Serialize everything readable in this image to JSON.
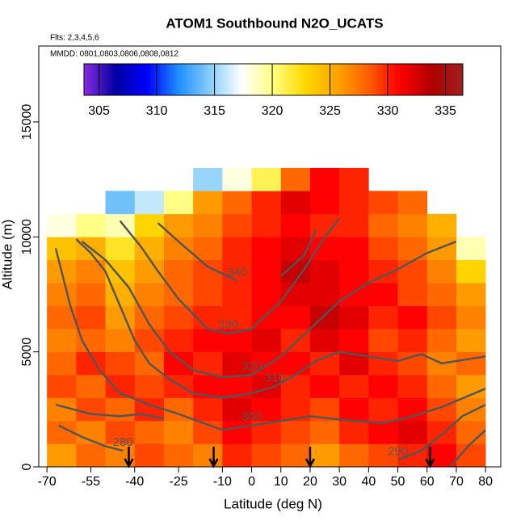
{
  "chart_data": {
    "type": "heatmap",
    "title": "ATOM1 Southbound N2O_UCATS",
    "subtitle": "Flts: 2,3,4,5,6",
    "annotation": "MMDD: 0801,0803,0806,0808,0812",
    "xlabel": "Latitude (deg N)",
    "ylabel": "Altitude (m)",
    "xlim": [
      -72.8,
      85.2
    ],
    "ylim": [
      0,
      18300
    ],
    "xticks": [
      -70,
      -55,
      -40,
      -25,
      -10,
      0,
      10,
      20,
      30,
      40,
      50,
      60,
      70,
      80
    ],
    "yticks": [
      0,
      5000,
      10000,
      15000
    ],
    "x_bins": [
      -70,
      -60,
      -50,
      -40,
      -30,
      -20,
      -10,
      0,
      10,
      20,
      30,
      40,
      50,
      60,
      70,
      80
    ],
    "y_bins": [
      0,
      1000,
      2000,
      3000,
      4000,
      5000,
      6000,
      7000,
      8000,
      9000,
      10000,
      11000,
      12000,
      13000
    ],
    "values": [
      [
        326,
        328,
        327,
        329,
        328,
        327,
        330,
        329,
        328,
        326,
        328,
        329,
        330,
        331,
        329
      ],
      [
        328,
        327,
        329,
        328,
        327,
        329,
        331,
        330,
        329,
        328,
        330,
        331,
        332,
        330,
        328
      ],
      [
        327,
        329,
        328,
        330,
        328,
        330,
        332,
        331,
        330,
        329,
        331,
        330,
        331,
        329,
        327
      ],
      [
        329,
        328,
        330,
        329,
        330,
        331,
        331,
        332,
        330,
        331,
        330,
        331,
        330,
        328,
        326
      ],
      [
        328,
        330,
        329,
        328,
        331,
        330,
        332,
        331,
        331,
        330,
        332,
        330,
        329,
        327,
        328
      ],
      [
        327,
        328,
        327,
        329,
        330,
        331,
        331,
        332,
        330,
        332,
        331,
        329,
        330,
        328,
        326
      ],
      [
        328,
        329,
        326,
        328,
        329,
        330,
        330,
        331,
        331,
        333,
        332,
        330,
        331,
        329,
        327
      ],
      [
        327,
        328,
        325,
        327,
        328,
        329,
        330,
        331,
        332,
        332,
        331,
        331,
        329,
        328,
        326
      ],
      [
        326,
        327,
        324,
        326,
        328,
        329,
        330,
        331,
        333,
        332,
        331,
        330,
        329,
        327,
        323
      ],
      [
        324,
        325,
        322,
        325,
        327,
        328,
        330,
        331,
        332,
        331,
        331,
        329,
        328,
        326,
        319
      ],
      [
        318,
        320,
        319,
        323,
        326,
        327,
        329,
        330,
        331,
        330,
        330,
        328,
        327,
        325,
        null
      ],
      [
        null,
        null,
        314,
        316,
        320,
        326,
        328,
        330,
        332,
        331,
        330,
        329,
        328,
        null,
        null
      ],
      [
        null,
        null,
        null,
        null,
        null,
        315,
        318,
        321,
        328,
        331,
        330,
        null,
        null,
        null,
        null
      ]
    ],
    "colorbar": {
      "range": [
        303.7,
        336.5
      ],
      "ticks": [
        305,
        310,
        315,
        320,
        325,
        330,
        335
      ],
      "colormap": [
        "#8a2be2",
        "#0000a0",
        "#0000ff",
        "#1e90ff",
        "#87cefa",
        "#ffffff",
        "#ffff80",
        "#ffd700",
        "#ffa500",
        "#ff6000",
        "#ff0000",
        "#b00000",
        "#a02020"
      ]
    },
    "contour_color": "#555555",
    "contours": [
      {
        "label": 280,
        "x": [
          -66,
          -58,
          -50,
          -44,
          null,
          68,
          74,
          80
        ],
        "y": [
          1800,
          1300,
          900,
          700,
          null,
          0,
          900,
          1600
        ]
      },
      {
        "label": 290,
        "x": [
          -67,
          -55,
          -45,
          -38,
          -30,
          null,
          50,
          58,
          66,
          72,
          80
        ],
        "y": [
          2700,
          2300,
          2200,
          2300,
          2100,
          null,
          300,
          700,
          1500,
          2200,
          2700
        ]
      },
      {
        "label": 300,
        "x": [
          -67,
          -62,
          -58,
          -52,
          -45,
          -35,
          -25,
          -10,
          0,
          10,
          20,
          35,
          45,
          55,
          65,
          80
        ],
        "y": [
          9500,
          7000,
          5500,
          4200,
          3200,
          2700,
          2300,
          1600,
          1800,
          2000,
          2200,
          2000,
          1900,
          2200,
          2600,
          3400
        ]
      },
      {
        "label": 310,
        "x": [
          -60,
          -55,
          -50,
          -45,
          -40,
          -35,
          -28,
          -20,
          -10,
          0,
          8,
          15,
          22,
          30,
          40,
          50,
          58,
          65,
          70,
          80
        ],
        "y": [
          9900,
          9300,
          8500,
          7000,
          5500,
          4500,
          3800,
          3200,
          3000,
          3200,
          3500,
          4000,
          4600,
          5000,
          4800,
          4600,
          4900,
          4500,
          4600,
          4800
        ]
      },
      {
        "label": 320,
        "x": [
          -58,
          -50,
          -42,
          -35,
          -28,
          -20,
          -10,
          0,
          10,
          20,
          30,
          40,
          50,
          60,
          70
        ],
        "y": [
          9800,
          9000,
          7800,
          6200,
          5000,
          4200,
          3900,
          4000,
          4800,
          6000,
          7200,
          8000,
          8600,
          9300,
          9800
        ]
      },
      {
        "label": 330,
        "x": [
          -45,
          -38,
          -32,
          -25,
          -15,
          -8,
          0,
          10,
          18,
          25,
          30
        ],
        "y": [
          10700,
          9600,
          8500,
          7300,
          6000,
          5800,
          6000,
          7200,
          8600,
          10000,
          10800
        ]
      },
      {
        "label": 340,
        "x": [
          -32,
          -25,
          -15,
          -5,
          null,
          10,
          18,
          22
        ],
        "y": [
          10600,
          9800,
          8700,
          8100,
          null,
          8300,
          9200,
          10300
        ]
      }
    ],
    "flight_markers": [
      -42,
      -13,
      20,
      61
    ]
  }
}
